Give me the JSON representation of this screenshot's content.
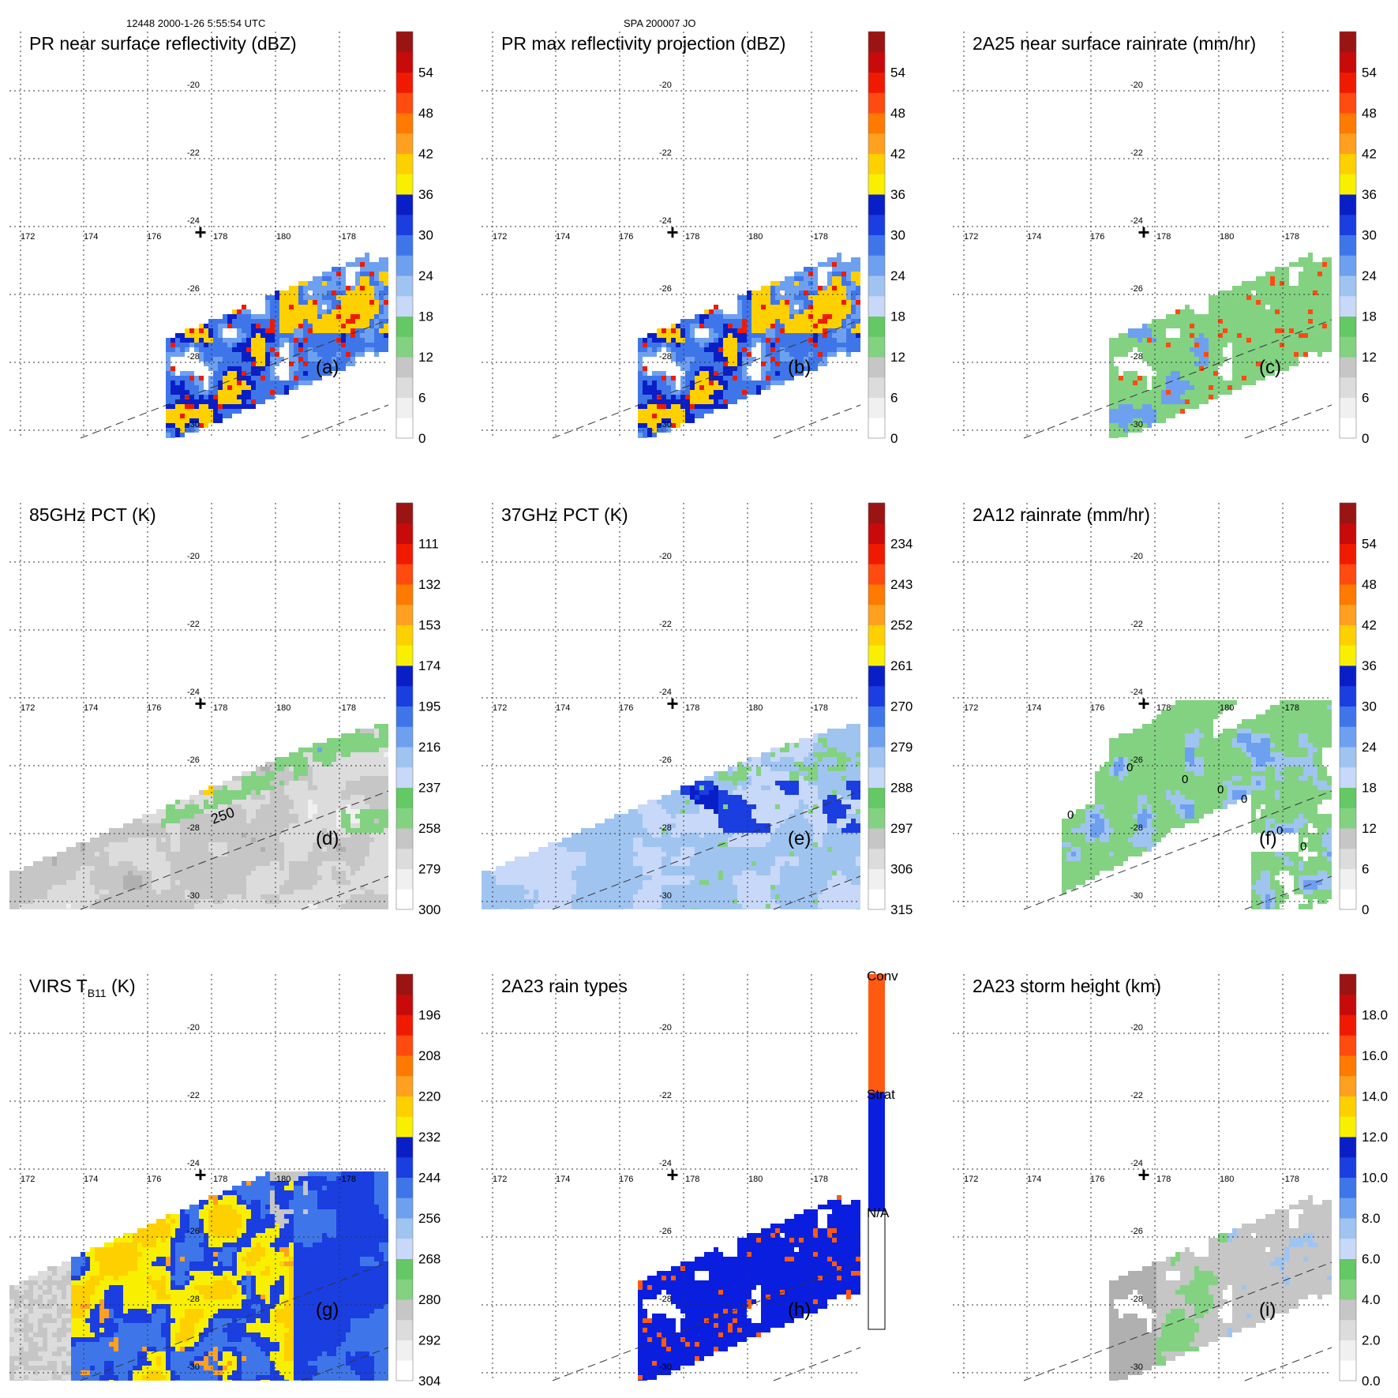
{
  "header": {
    "left": "12448 2000-1-26 5:55:54 UTC",
    "center": "SPA 200007 JO"
  },
  "axes": {
    "lon_labels": [
      "172",
      "174",
      "176",
      "178",
      "180",
      "-178"
    ],
    "lat_labels": [
      "-20",
      "-22",
      "-24",
      "-26",
      "-28",
      "-30"
    ],
    "marker": "+"
  },
  "palette": {
    "standard": [
      "#ffffff",
      "#f0f0f0",
      "#dcdcdc",
      "#c6c6c6",
      "#b0b0b0",
      "#9a9a9a",
      "#82d282",
      "#64c864",
      "#c8d8f8",
      "#a0c4f0",
      "#6ea0f0",
      "#3e76ea",
      "#1a3ee0",
      "#0a1ec8",
      "#f8f000",
      "#ffd000",
      "#ffa020",
      "#ff7a00",
      "#ff4a10",
      "#f01a00",
      "#c80a0a",
      "#9a1414",
      "#7a1414",
      "#5a0e0e"
    ],
    "rain_types": [
      "#ffffff",
      "#0a1ee0",
      "#ff5a10"
    ]
  },
  "chart_data": [
    {
      "type": "heatmap",
      "panel": "(a)",
      "title": "PR near surface reflectivity (dBZ)",
      "colorbar": {
        "ticks": [
          "0",
          "6",
          "12",
          "18",
          "24",
          "30",
          "36",
          "42",
          "48",
          "54"
        ],
        "range": [
          0,
          60
        ]
      },
      "swath": "pr",
      "field": "pr_reflectivity"
    },
    {
      "type": "heatmap",
      "panel": "(b)",
      "title": "PR max reflectivity projection (dBZ)",
      "colorbar": {
        "ticks": [
          "0",
          "6",
          "12",
          "18",
          "24",
          "30",
          "36",
          "42",
          "48",
          "54"
        ],
        "range": [
          0,
          60
        ]
      },
      "swath": "pr",
      "field": "pr_max"
    },
    {
      "type": "heatmap",
      "panel": "(c)",
      "title": "2A25 near surface rainrate (mm/hr)",
      "colorbar": {
        "ticks": [
          "0",
          "6",
          "12",
          "18",
          "24",
          "30",
          "36",
          "42",
          "48",
          "54"
        ],
        "range": [
          0,
          60
        ]
      },
      "swath": "pr",
      "field": "rainrate_2a25"
    },
    {
      "type": "heatmap",
      "panel": "(d)",
      "title": "85GHz PCT (K)",
      "colorbar": {
        "ticks": [
          "300",
          "279",
          "258",
          "237",
          "216",
          "195",
          "174",
          "153",
          "132",
          "111"
        ],
        "range": [
          300,
          90
        ]
      },
      "swath": "tmi",
      "field": "pct85",
      "annotations": [
        "250"
      ]
    },
    {
      "type": "heatmap",
      "panel": "(e)",
      "title": "37GHz PCT (K)",
      "colorbar": {
        "ticks": [
          "315",
          "306",
          "297",
          "288",
          "279",
          "270",
          "261",
          "252",
          "243",
          "234"
        ],
        "range": [
          315,
          225
        ]
      },
      "swath": "tmi",
      "field": "pct37"
    },
    {
      "type": "heatmap",
      "panel": "(f)",
      "title": "2A12 rainrate (mm/hr)",
      "colorbar": {
        "ticks": [
          "0",
          "6",
          "12",
          "18",
          "24",
          "30",
          "36",
          "42",
          "48",
          "54"
        ],
        "range": [
          0,
          60
        ]
      },
      "swath": "tmi",
      "field": "rainrate_2a12",
      "annotations": [
        "0",
        "0",
        "0",
        "0",
        "0",
        "0",
        "0"
      ]
    },
    {
      "type": "heatmap",
      "panel": "(g)",
      "title": "VIRS T",
      "title_sub": "B11",
      "title_unit": " (K)",
      "colorbar": {
        "ticks": [
          "304",
          "292",
          "280",
          "268",
          "256",
          "244",
          "232",
          "220",
          "208",
          "196"
        ],
        "range": [
          304,
          184
        ]
      },
      "swath": "virs",
      "field": "virs_tb11"
    },
    {
      "type": "heatmap",
      "panel": "(h)",
      "title": "2A23 rain types",
      "colorbar": {
        "categories": [
          "N/A",
          "Strat",
          "Conv"
        ]
      },
      "swath": "pr",
      "field": "rain_types"
    },
    {
      "type": "heatmap",
      "panel": "(i)",
      "title": "2A23 storm height (km)",
      "colorbar": {
        "ticks": [
          "0.0",
          "2.0",
          "4.0",
          "6.0",
          "8.0",
          "10.0",
          "12.0",
          "14.0",
          "16.0",
          "18.0"
        ],
        "range": [
          0,
          20
        ]
      },
      "swath": "pr",
      "field": "storm_height"
    }
  ]
}
